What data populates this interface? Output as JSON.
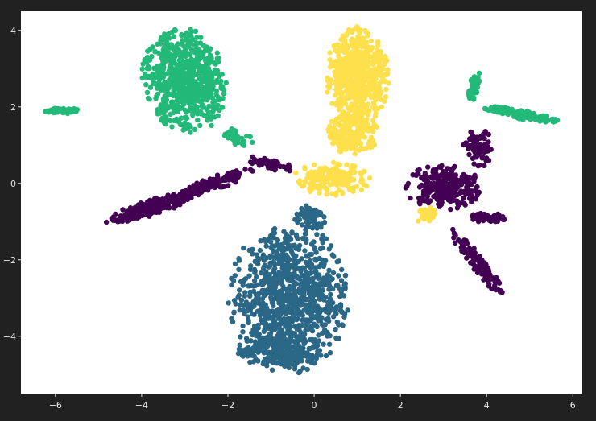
{
  "chart_data": {
    "type": "scatter",
    "title": "",
    "xlabel": "",
    "ylabel": "",
    "xlim": [
      -6.8,
      6.2
    ],
    "ylim": [
      -5.5,
      4.5
    ],
    "xticks": [
      -6,
      -4,
      -2,
      0,
      2,
      4,
      6
    ],
    "yticks": [
      -4,
      -2,
      0,
      2,
      4
    ],
    "xtick_labels": [
      "−6",
      "−4",
      "−2",
      "0",
      "2",
      "4",
      "6"
    ],
    "ytick_labels": [
      "−4",
      "−2",
      "0",
      "2",
      "4"
    ],
    "grid": false,
    "legend": "none",
    "background": "#212121",
    "plot_background": "#ffffff",
    "series": [
      {
        "color": "#440154",
        "clusters": [
          {
            "cx": -3.7,
            "cy": -0.6,
            "rx": 1.2,
            "ry": 0.22,
            "rot": 20,
            "n": 260
          },
          {
            "cx": -2.3,
            "cy": 0.0,
            "rx": 1.0,
            "ry": 0.18,
            "rot": 22,
            "n": 120
          },
          {
            "cx": -1.0,
            "cy": 0.5,
            "rx": 0.6,
            "ry": 0.14,
            "rot": -15,
            "n": 60
          },
          {
            "cx": 3.0,
            "cy": -0.1,
            "rx": 0.9,
            "ry": 0.6,
            "rot": 0,
            "n": 260
          },
          {
            "cx": 3.8,
            "cy": 0.9,
            "rx": 0.35,
            "ry": 0.55,
            "rot": 0,
            "n": 80
          },
          {
            "cx": 3.8,
            "cy": -2.1,
            "rx": 1.1,
            "ry": 0.17,
            "rot": -55,
            "n": 130
          },
          {
            "cx": 4.0,
            "cy": -0.9,
            "rx": 0.45,
            "ry": 0.12,
            "rot": 0,
            "n": 60
          }
        ]
      },
      {
        "color": "#2b6786",
        "clusters": [
          {
            "cx": -0.6,
            "cy": -3.0,
            "rx": 1.4,
            "ry": 2.0,
            "rot": 0,
            "n": 900
          },
          {
            "cx": -0.1,
            "cy": -0.9,
            "rx": 0.4,
            "ry": 0.4,
            "rot": 0,
            "n": 60
          },
          {
            "cx": -0.8,
            "cy": -4.4,
            "rx": 1.0,
            "ry": 0.5,
            "rot": 0,
            "n": 200
          }
        ]
      },
      {
        "color": "#22b979",
        "clusters": [
          {
            "cx": -3.0,
            "cy": 2.7,
            "rx": 1.0,
            "ry": 1.4,
            "rot": 10,
            "n": 700
          },
          {
            "cx": -5.8,
            "cy": 1.9,
            "rx": 0.45,
            "ry": 0.08,
            "rot": 0,
            "n": 80
          },
          {
            "cx": 4.8,
            "cy": 1.8,
            "rx": 0.9,
            "ry": 0.13,
            "rot": -12,
            "n": 140
          },
          {
            "cx": 3.7,
            "cy": 2.5,
            "rx": 0.12,
            "ry": 0.45,
            "rot": -15,
            "n": 50
          },
          {
            "cx": -1.8,
            "cy": 1.2,
            "rx": 0.4,
            "ry": 0.2,
            "rot": -20,
            "n": 40
          }
        ]
      },
      {
        "color": "#fde04c",
        "clusters": [
          {
            "cx": 1.0,
            "cy": 2.8,
            "rx": 0.75,
            "ry": 1.3,
            "rot": 0,
            "n": 650
          },
          {
            "cx": 0.9,
            "cy": 1.3,
            "rx": 0.6,
            "ry": 0.6,
            "rot": 0,
            "n": 200
          },
          {
            "cx": 0.4,
            "cy": 0.1,
            "rx": 0.9,
            "ry": 0.45,
            "rot": 0,
            "n": 180
          },
          {
            "cx": 2.6,
            "cy": -0.8,
            "rx": 0.3,
            "ry": 0.25,
            "rot": 0,
            "n": 30
          }
        ]
      }
    ]
  }
}
